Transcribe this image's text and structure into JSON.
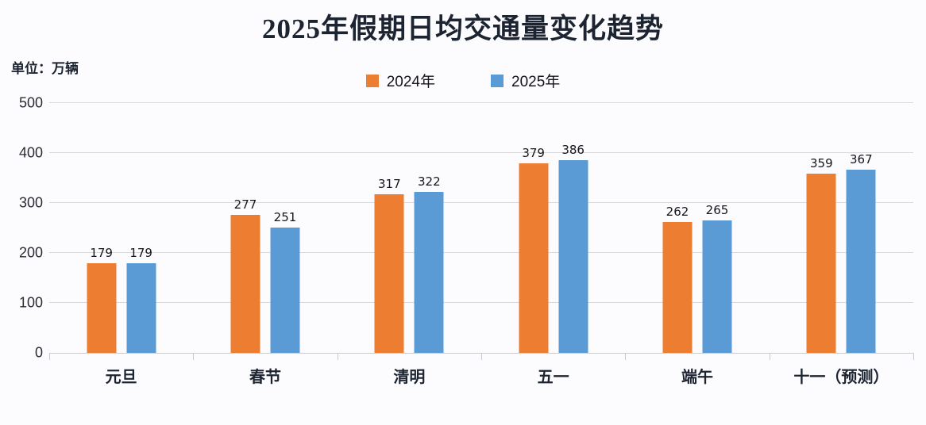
{
  "page": {
    "background": "#fcfcfe"
  },
  "chart_data": {
    "type": "bar",
    "title": "2025年假期日均交通量变化趋势",
    "unit_label": "单位：万辆",
    "categories": [
      "元旦",
      "春节",
      "清明",
      "五一",
      "端午",
      "十一（预测）"
    ],
    "series": [
      {
        "name": "2024年",
        "color": "#ED7D31",
        "values": [
          179,
          277,
          317,
          379,
          262,
          359
        ]
      },
      {
        "name": "2025年",
        "color": "#5B9BD5",
        "values": [
          179,
          251,
          322,
          386,
          265,
          367
        ]
      }
    ],
    "ylim": [
      0,
      500
    ],
    "yticks": [
      0,
      100,
      200,
      300,
      400,
      500
    ],
    "grid": "horizontal",
    "gridline_color": "#d9d9d9",
    "axis_color": "#c3ccd8",
    "legend_position": "top-center",
    "value_labels": true
  }
}
